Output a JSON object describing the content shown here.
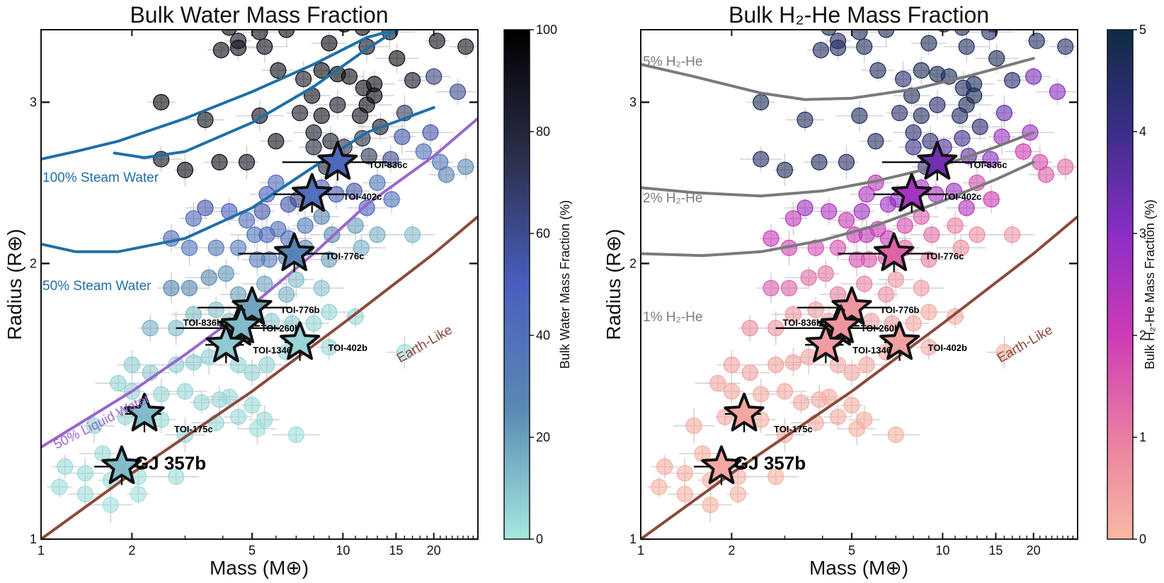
{
  "chart_data": [
    {
      "type": "scatter",
      "title": "Bulk Water Mass Fraction",
      "xlabel": "Mass (M⊕)",
      "ylabel": "Radius (R⊕)",
      "xscale": "log",
      "yscale": "log",
      "xlim": [
        1,
        28
      ],
      "ylim": [
        1,
        3.6
      ],
      "xticks": [
        {
          "v": 1,
          "t": "1"
        },
        {
          "v": 2,
          "t": "2"
        },
        {
          "v": 5,
          "t": "5"
        },
        {
          "v": 10,
          "t": "10"
        },
        {
          "v": 15,
          "t": "15"
        },
        {
          "v": 20,
          "t": "20"
        }
      ],
      "yticks": [
        {
          "v": 1,
          "t": "1"
        },
        {
          "v": 2,
          "t": "2"
        },
        {
          "v": 3,
          "t": "3"
        }
      ],
      "colorbar": {
        "label": "Bulk Water Mass Fraction (%)",
        "min": 0,
        "max": 100,
        "ticks": [
          {
            "v": 0,
            "t": "0"
          },
          {
            "v": 20,
            "t": "20"
          },
          {
            "v": 40,
            "t": "40"
          },
          {
            "v": 60,
            "t": "60"
          },
          {
            "v": 80,
            "t": "80"
          },
          {
            "v": 100,
            "t": "100"
          }
        ],
        "colors": [
          "#a6e8e0",
          "#5a8bb3",
          "#4a5fbf",
          "#2b2f4a",
          "#000000"
        ]
      },
      "curves": [
        {
          "label": "100% Steam Water",
          "color": "#1f6fa8",
          "points": [
            [
              1.75,
              2.64
            ],
            [
              2.2,
              2.61
            ],
            [
              3,
              2.65
            ],
            [
              5,
              2.85
            ],
            [
              8,
              3.12
            ],
            [
              12,
              3.43
            ],
            [
              20,
              3.82
            ]
          ]
        },
        {
          "label": "",
          "color": "#1f6fa8",
          "points": [
            [
              1.0,
              2.6
            ],
            [
              1.3,
              2.65
            ],
            [
              1.8,
              2.72
            ],
            [
              3,
              2.88
            ],
            [
              5,
              3.08
            ],
            [
              8,
              3.3
            ],
            [
              12,
              3.53
            ],
            [
              15,
              3.6
            ]
          ]
        },
        {
          "label": "50% Steam Water",
          "color": "#1f6fa8",
          "points": [
            [
              1,
              2.1
            ],
            [
              1.3,
              2.06
            ],
            [
              1.8,
              2.06
            ],
            [
              3,
              2.13
            ],
            [
              5,
              2.3
            ],
            [
              8,
              2.55
            ],
            [
              12,
              2.78
            ],
            [
              20,
              2.96
            ]
          ]
        },
        {
          "label": "50% Liquid Water",
          "color": "#9966cc",
          "points": [
            [
              1,
              1.26
            ],
            [
              2,
              1.45
            ],
            [
              3,
              1.59
            ],
            [
              5,
              1.8
            ],
            [
              8,
              2.05
            ],
            [
              12,
              2.32
            ],
            [
              20,
              2.62
            ],
            [
              28,
              2.88
            ]
          ]
        },
        {
          "label": "Earth-Like",
          "color": "#8b4a3c",
          "points": [
            [
              1,
              1.0
            ],
            [
              2,
              1.18
            ],
            [
              5,
              1.45
            ],
            [
              10,
              1.72
            ],
            [
              20,
              2.05
            ],
            [
              28,
              2.25
            ]
          ]
        }
      ],
      "highlighted": [
        {
          "name": "TOI-836c",
          "mass": 9.6,
          "radius": 2.58,
          "frac": 45,
          "xerr": [
            6.3,
            14
          ]
        },
        {
          "name": "TOI-402c",
          "mass": 7.9,
          "radius": 2.38,
          "frac": 40,
          "xerr": [
            5.9,
            10.3
          ]
        },
        {
          "name": "TOI-776c",
          "mass": 6.9,
          "radius": 2.05,
          "frac": 30,
          "xerr": [
            4.5,
            9.3
          ]
        },
        {
          "name": "TOI-776b",
          "mass": 5.0,
          "radius": 1.79,
          "frac": 18,
          "xerr": [
            3.3,
            6.7
          ]
        },
        {
          "name": "TOI-836b",
          "mass": 4.5,
          "radius": 1.7,
          "frac": 10,
          "xerr": [
            2.8,
            6.2
          ]
        },
        {
          "name": "TOI-260b",
          "mass": 4.6,
          "radius": 1.71,
          "frac": 12,
          "xerr": [
            3.9,
            5.3
          ]
        },
        {
          "name": "TOI-1346b",
          "mass": 4.1,
          "radius": 1.63,
          "frac": 8,
          "xerr": [
            3.5,
            4.7
          ]
        },
        {
          "name": "TOI-402b",
          "mass": 7.2,
          "radius": 1.64,
          "frac": 5,
          "xerr": [
            6.4,
            8
          ]
        },
        {
          "name": "TOI-175c",
          "mass": 2.2,
          "radius": 1.37,
          "frac": 12,
          "xerr": [
            1.9,
            2.5
          ]
        },
        {
          "name": "GJ 357b",
          "mass": 1.85,
          "radius": 1.2,
          "frac": 12,
          "xerr": [
            1.5,
            2.2
          ]
        }
      ]
    },
    {
      "type": "scatter",
      "title": "Bulk H₂-He Mass Fraction",
      "xlabel": "Mass (M⊕)",
      "ylabel": "Radius (R⊕)",
      "xscale": "log",
      "yscale": "log",
      "xlim": [
        1,
        28
      ],
      "ylim": [
        1,
        3.6
      ],
      "xticks": [
        {
          "v": 1,
          "t": "1"
        },
        {
          "v": 2,
          "t": "2"
        },
        {
          "v": 5,
          "t": "5"
        },
        {
          "v": 10,
          "t": "10"
        },
        {
          "v": 15,
          "t": "15"
        },
        {
          "v": 20,
          "t": "20"
        }
      ],
      "yticks": [
        {
          "v": 1,
          "t": "1"
        },
        {
          "v": 2,
          "t": "2"
        },
        {
          "v": 3,
          "t": "3"
        }
      ],
      "colorbar": {
        "label": "Bulk H₂-He Mass Fraction (%)",
        "min": 0,
        "max": 5,
        "ticks": [
          {
            "v": 0,
            "t": "0"
          },
          {
            "v": 1,
            "t": "1"
          },
          {
            "v": 2,
            "t": "2"
          },
          {
            "v": 3,
            "t": "3"
          },
          {
            "v": 4,
            "t": "4"
          },
          {
            "v": 5,
            "t": "5"
          }
        ],
        "colors": [
          "#f9b9a2",
          "#e87ea1",
          "#cf3bb5",
          "#8a2ec6",
          "#3d2e8a",
          "#0f2c43"
        ]
      },
      "curves": [
        {
          "label": "5% H₂-He",
          "color": "#7a7a7a",
          "points": [
            [
              1,
              3.3
            ],
            [
              1.5,
              3.2
            ],
            [
              2.5,
              3.07
            ],
            [
              3.5,
              3.02
            ],
            [
              5,
              3.03
            ],
            [
              8,
              3.1
            ],
            [
              12,
              3.2
            ],
            [
              20,
              3.35
            ]
          ]
        },
        {
          "label": "2% H₂-He",
          "color": "#7a7a7a",
          "points": [
            [
              1,
              2.42
            ],
            [
              1.5,
              2.39
            ],
            [
              2.5,
              2.37
            ],
            [
              4,
              2.4
            ],
            [
              6,
              2.46
            ],
            [
              10,
              2.56
            ],
            [
              15,
              2.68
            ],
            [
              20,
              2.78
            ]
          ]
        },
        {
          "label": "1% H₂-He",
          "color": "#7a7a7a",
          "points": [
            [
              1,
              2.05
            ],
            [
              1.6,
              2.04
            ],
            [
              2.5,
              2.06
            ],
            [
              4,
              2.12
            ],
            [
              6,
              2.2
            ],
            [
              10,
              2.34
            ],
            [
              15,
              2.47
            ],
            [
              20,
              2.58
            ]
          ]
        },
        {
          "label": "Earth-Like",
          "color": "#8b4a3c",
          "points": [
            [
              1,
              1.0
            ],
            [
              2,
              1.18
            ],
            [
              5,
              1.45
            ],
            [
              10,
              1.72
            ],
            [
              20,
              2.05
            ],
            [
              28,
              2.25
            ]
          ]
        }
      ],
      "highlighted": [
        {
          "name": "TOI-836c",
          "mass": 9.6,
          "radius": 2.58,
          "frac": 3.3,
          "xerr": [
            6.3,
            14
          ]
        },
        {
          "name": "TOI-402c",
          "mass": 7.9,
          "radius": 2.38,
          "frac": 2.6,
          "xerr": [
            5.9,
            10.3
          ]
        },
        {
          "name": "TOI-776c",
          "mass": 6.9,
          "radius": 2.05,
          "frac": 1.4,
          "xerr": [
            4.5,
            9.3
          ]
        },
        {
          "name": "TOI-776b",
          "mass": 5.0,
          "radius": 1.79,
          "frac": 0.6,
          "xerr": [
            3.3,
            6.7
          ]
        },
        {
          "name": "TOI-836b",
          "mass": 4.5,
          "radius": 1.7,
          "frac": 0.5,
          "xerr": [
            2.8,
            6.2
          ]
        },
        {
          "name": "TOI-260b",
          "mass": 4.6,
          "radius": 1.71,
          "frac": 0.6,
          "xerr": [
            3.9,
            5.3
          ]
        },
        {
          "name": "TOI-1346b",
          "mass": 4.1,
          "radius": 1.63,
          "frac": 0.5,
          "xerr": [
            3.5,
            4.7
          ]
        },
        {
          "name": "TOI-402b",
          "mass": 7.2,
          "radius": 1.64,
          "frac": 0.4,
          "xerr": [
            6.4,
            8
          ]
        },
        {
          "name": "TOI-175c",
          "mass": 2.2,
          "radius": 1.37,
          "frac": 0.3,
          "xerr": [
            1.9,
            2.5
          ]
        },
        {
          "name": "GJ 357b",
          "mass": 1.85,
          "radius": 1.2,
          "frac": 0.3,
          "xerr": [
            1.5,
            2.2
          ]
        }
      ]
    }
  ],
  "background_planets": [
    [
      10.1,
      3.65,
      95
    ],
    [
      11.6,
      3.62,
      92
    ],
    [
      14.7,
      3.65,
      92
    ],
    [
      14.3,
      3.58,
      90
    ],
    [
      4.2,
      3.62,
      96
    ],
    [
      5.3,
      3.58,
      93
    ],
    [
      6.5,
      3.6,
      96
    ],
    [
      3.95,
      3.42,
      93
    ],
    [
      4.5,
      3.44,
      92
    ],
    [
      5.5,
      3.45,
      92
    ],
    [
      4.5,
      3.5,
      90
    ],
    [
      9.0,
      3.48,
      95
    ],
    [
      12.0,
      3.45,
      92
    ],
    [
      20.5,
      3.5,
      92
    ],
    [
      25.5,
      3.45,
      90
    ],
    [
      15.1,
      3.35,
      95
    ],
    [
      9.6,
      3.22,
      96
    ],
    [
      6.1,
      3.25,
      92
    ],
    [
      8.5,
      3.25,
      95
    ],
    [
      7.4,
      3.18,
      88
    ],
    [
      10.5,
      3.2,
      93
    ],
    [
      12.7,
      3.14,
      94
    ],
    [
      11.7,
      3.11,
      92
    ],
    [
      17.0,
      3.17,
      88
    ],
    [
      12.7,
      3.05,
      96
    ],
    [
      12.0,
      2.98,
      94
    ],
    [
      2.5,
      3.0,
      95
    ],
    [
      3.5,
      2.87,
      92
    ],
    [
      5.3,
      2.9,
      92
    ],
    [
      7.2,
      2.92,
      88
    ],
    [
      7.9,
      3.05,
      92
    ],
    [
      9.6,
      2.98,
      88
    ],
    [
      8.5,
      2.9,
      92
    ],
    [
      11.4,
      2.9,
      90
    ],
    [
      13.3,
      2.82,
      88
    ],
    [
      16.0,
      2.92,
      70
    ],
    [
      20.0,
      3.2,
      65
    ],
    [
      24.0,
      3.08,
      60
    ],
    [
      4.8,
      2.58,
      90
    ],
    [
      6.0,
      2.72,
      92
    ],
    [
      2.5,
      2.6,
      90
    ],
    [
      3.0,
      2.53,
      95
    ],
    [
      3.9,
      2.58,
      93
    ],
    [
      8.0,
      2.78,
      88
    ],
    [
      9.1,
      2.72,
      86
    ],
    [
      8.0,
      2.68,
      80
    ],
    [
      10.1,
      2.68,
      75
    ],
    [
      11.6,
      2.74,
      78
    ],
    [
      8.8,
      2.55,
      80
    ],
    [
      12.2,
      2.62,
      72
    ],
    [
      14.4,
      2.6,
      60
    ],
    [
      15.7,
      2.75,
      55
    ],
    [
      18.5,
      2.65,
      40
    ],
    [
      19.5,
      2.78,
      55
    ],
    [
      21.0,
      2.58,
      35
    ],
    [
      22.0,
      2.5,
      30
    ],
    [
      25.5,
      2.55,
      25
    ],
    [
      5.4,
      2.28,
      55
    ],
    [
      5.6,
      2.38,
      50
    ],
    [
      6.6,
      2.32,
      55
    ],
    [
      7.1,
      2.35,
      60
    ],
    [
      6.0,
      2.45,
      45
    ],
    [
      8.5,
      2.42,
      50
    ],
    [
      9.5,
      2.38,
      52
    ],
    [
      10.9,
      2.4,
      55
    ],
    [
      12.0,
      2.3,
      48
    ],
    [
      14.5,
      2.35,
      40
    ],
    [
      13.0,
      2.45,
      35
    ],
    [
      3.5,
      2.3,
      55
    ],
    [
      4.2,
      2.28,
      50
    ],
    [
      3.2,
      2.24,
      45
    ],
    [
      4.8,
      2.23,
      42
    ],
    [
      5.1,
      2.15,
      40
    ],
    [
      5.6,
      2.15,
      45
    ],
    [
      6.1,
      2.18,
      40
    ],
    [
      6.6,
      2.13,
      42
    ],
    [
      7.5,
      2.2,
      35
    ],
    [
      8.5,
      2.25,
      30
    ],
    [
      9.2,
      2.15,
      25
    ],
    [
      11.0,
      2.2,
      20
    ],
    [
      13.0,
      2.15,
      15
    ],
    [
      17.0,
      2.15,
      12
    ],
    [
      2.7,
      2.13,
      42
    ],
    [
      3.1,
      2.08,
      38
    ],
    [
      3.8,
      2.08,
      35
    ],
    [
      4.5,
      2.08,
      33
    ],
    [
      5.2,
      2.02,
      35
    ],
    [
      5.7,
      2.02,
      32
    ],
    [
      6.5,
      2.03,
      30
    ],
    [
      7.5,
      2.08,
      25
    ],
    [
      9.0,
      2.02,
      20
    ],
    [
      11.5,
      2.08,
      15
    ],
    [
      2.7,
      1.88,
      30
    ],
    [
      3.1,
      1.88,
      28
    ],
    [
      3.6,
      1.93,
      25
    ],
    [
      4.1,
      1.95,
      22
    ],
    [
      4.5,
      1.85,
      20
    ],
    [
      5.5,
      1.9,
      18
    ],
    [
      6.5,
      1.85,
      15
    ],
    [
      7.0,
      1.92,
      12
    ],
    [
      8.5,
      1.88,
      10
    ],
    [
      2.3,
      1.7,
      15
    ],
    [
      2.8,
      1.7,
      12
    ],
    [
      3.2,
      1.76,
      12
    ],
    [
      3.8,
      1.78,
      10
    ],
    [
      4.2,
      1.73,
      10
    ],
    [
      5.8,
      1.73,
      8
    ],
    [
      6.8,
      1.72,
      8
    ],
    [
      8.0,
      1.72,
      6
    ],
    [
      9.0,
      1.77,
      5
    ],
    [
      11.0,
      1.75,
      5
    ],
    [
      2.0,
      1.55,
      8
    ],
    [
      2.3,
      1.52,
      8
    ],
    [
      2.8,
      1.55,
      7
    ],
    [
      3.2,
      1.56,
      7
    ],
    [
      3.6,
      1.58,
      7
    ],
    [
      4.5,
      1.55,
      6
    ],
    [
      5.0,
      1.52,
      6
    ],
    [
      5.6,
      1.55,
      6
    ],
    [
      6.5,
      1.6,
      5
    ],
    [
      9.0,
      1.62,
      5
    ],
    [
      16.0,
      1.6,
      3
    ],
    [
      1.8,
      1.48,
      6
    ],
    [
      2.0,
      1.45,
      6
    ],
    [
      2.5,
      1.44,
      5
    ],
    [
      3.0,
      1.45,
      5
    ],
    [
      3.4,
      1.41,
      5
    ],
    [
      3.9,
      1.42,
      5
    ],
    [
      4.2,
      1.43,
      4
    ],
    [
      5.0,
      1.4,
      4
    ],
    [
      5.5,
      1.35,
      4
    ],
    [
      1.5,
      1.33,
      5
    ],
    [
      1.9,
      1.36,
      5
    ],
    [
      2.5,
      1.35,
      4
    ],
    [
      3.0,
      1.3,
      4
    ],
    [
      3.8,
      1.34,
      4
    ],
    [
      4.5,
      1.36,
      4
    ],
    [
      5.2,
      1.32,
      3
    ],
    [
      7.0,
      1.3,
      3
    ],
    [
      1.2,
      1.2,
      4
    ],
    [
      1.4,
      1.18,
      4
    ],
    [
      1.6,
      1.24,
      4
    ],
    [
      1.7,
      1.16,
      3
    ],
    [
      2.1,
      1.17,
      3
    ],
    [
      2.8,
      1.17,
      3
    ],
    [
      1.15,
      1.14,
      3
    ],
    [
      1.4,
      1.12,
      3
    ],
    [
      1.7,
      1.09,
      2
    ],
    [
      2.1,
      1.12,
      2
    ]
  ],
  "errors_bars_note": "light grey error bars around background planets"
}
